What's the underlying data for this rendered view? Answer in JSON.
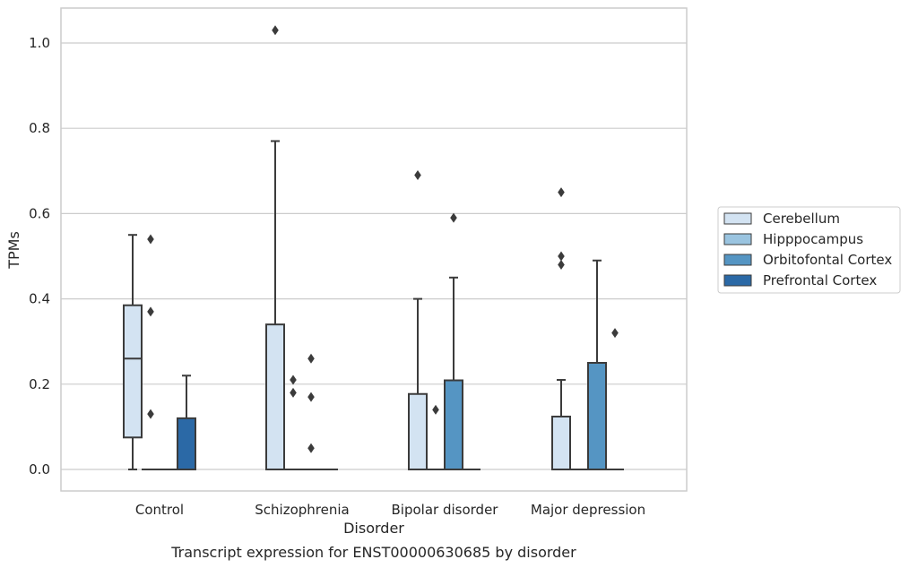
{
  "chart_data": {
    "type": "box",
    "caption": "Transcript expression for ENST00000630685 by disorder",
    "xlabel": "Disorder",
    "ylabel": "TPMs",
    "ylim": [
      -0.05,
      1.08
    ],
    "yticks": [
      0.0,
      0.2,
      0.4,
      0.6,
      0.8,
      1.0
    ],
    "ytick_labels": [
      "0.0",
      "0.2",
      "0.4",
      "0.6",
      "0.8",
      "1.0"
    ],
    "grid": "horizontal",
    "legend_placement": "right",
    "categories": [
      "Control",
      "Schizophrenia",
      "Bipolar disorder",
      "Major depression"
    ],
    "series": [
      {
        "name": "Cerebellum",
        "color": "#d3e3f2",
        "boxes": [
          {
            "q1": 0.075,
            "median": 0.26,
            "q3": 0.385,
            "whisker_low": 0.0,
            "whisker_high": 0.55,
            "outliers": []
          },
          {
            "q1": 0.0,
            "median": 0.0,
            "q3": 0.34,
            "whisker_low": 0.0,
            "whisker_high": 0.77,
            "outliers": [
              1.03
            ]
          },
          {
            "q1": 0.0,
            "median": 0.0,
            "q3": 0.177,
            "whisker_low": 0.0,
            "whisker_high": 0.4,
            "outliers": [
              0.69
            ]
          },
          {
            "q1": 0.0,
            "median": 0.0,
            "q3": 0.124,
            "whisker_low": 0.0,
            "whisker_high": 0.21,
            "outliers": [
              0.48,
              0.5,
              0.65
            ]
          }
        ]
      },
      {
        "name": "Hipppocampus",
        "color": "#9ac4e0",
        "boxes": [
          {
            "q1": 0.0,
            "median": 0.0,
            "q3": 0.0,
            "whisker_low": 0.0,
            "whisker_high": 0.0,
            "outliers": [
              0.13,
              0.37,
              0.54
            ]
          },
          {
            "q1": 0.0,
            "median": 0.0,
            "q3": 0.0,
            "whisker_low": 0.0,
            "whisker_high": 0.0,
            "outliers": [
              0.18,
              0.21
            ]
          },
          {
            "q1": 0.0,
            "median": 0.0,
            "q3": 0.0,
            "whisker_low": 0.0,
            "whisker_high": 0.0,
            "outliers": [
              0.14
            ]
          },
          {
            "q1": 0.0,
            "median": 0.0,
            "q3": 0.0,
            "whisker_low": 0.0,
            "whisker_high": 0.0,
            "outliers": []
          }
        ]
      },
      {
        "name": "Orbitofontal Cortex",
        "color": "#5595c3",
        "boxes": [
          {
            "q1": 0.0,
            "median": 0.0,
            "q3": 0.0,
            "whisker_low": 0.0,
            "whisker_high": 0.0,
            "outliers": []
          },
          {
            "q1": 0.0,
            "median": 0.0,
            "q3": 0.0,
            "whisker_low": 0.0,
            "whisker_high": 0.0,
            "outliers": [
              0.05,
              0.17,
              0.26
            ]
          },
          {
            "q1": 0.0,
            "median": 0.0,
            "q3": 0.209,
            "whisker_low": 0.0,
            "whisker_high": 0.45,
            "outliers": [
              0.59
            ]
          },
          {
            "q1": 0.0,
            "median": 0.0,
            "q3": 0.25,
            "whisker_low": 0.0,
            "whisker_high": 0.49,
            "outliers": []
          }
        ]
      },
      {
        "name": "Prefrontal Cortex",
        "color": "#2b69a6",
        "boxes": [
          {
            "q1": 0.0,
            "median": 0.0,
            "q3": 0.12,
            "whisker_low": 0.0,
            "whisker_high": 0.22,
            "outliers": []
          },
          {
            "q1": 0.0,
            "median": 0.0,
            "q3": 0.0,
            "whisker_low": 0.0,
            "whisker_high": 0.0,
            "outliers": []
          },
          {
            "q1": 0.0,
            "median": 0.0,
            "q3": 0.0,
            "whisker_low": 0.0,
            "whisker_high": 0.0,
            "outliers": []
          },
          {
            "q1": 0.0,
            "median": 0.0,
            "q3": 0.0,
            "whisker_low": 0.0,
            "whisker_high": 0.0,
            "outliers": [
              0.32
            ]
          }
        ]
      }
    ]
  }
}
